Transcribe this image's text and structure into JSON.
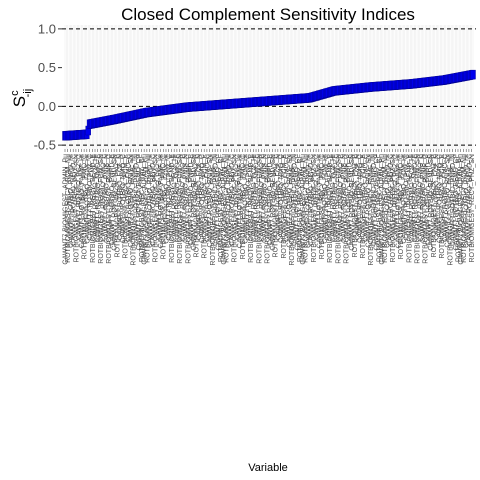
{
  "chart_data": {
    "type": "scatter",
    "title": "Closed Complement Sensitivity Indices",
    "ylabel_main": "S",
    "ylabel_sup": "c",
    "ylabel_sub": "-ij",
    "xlabel": "Variable",
    "ylim": [
      -0.55,
      1.05
    ],
    "yticks": [
      "-0.5",
      "0.0",
      "0.5",
      "1.0"
    ],
    "ytick_values": [
      -0.5,
      0.0,
      0.5,
      1.0
    ],
    "reference_lines": [
      -0.5,
      0.0,
      1.0
    ],
    "n_points": 300,
    "curve": [
      {
        "p": 0.0,
        "y": -0.38
      },
      {
        "p": 0.055,
        "y": -0.36
      },
      {
        "p": 0.06,
        "y": -0.23
      },
      {
        "p": 0.12,
        "y": -0.17
      },
      {
        "p": 0.2,
        "y": -0.08
      },
      {
        "p": 0.3,
        "y": -0.01
      },
      {
        "p": 0.45,
        "y": 0.05
      },
      {
        "p": 0.6,
        "y": 0.11
      },
      {
        "p": 0.66,
        "y": 0.2
      },
      {
        "p": 0.75,
        "y": 0.25
      },
      {
        "p": 0.85,
        "y": 0.29
      },
      {
        "p": 0.93,
        "y": 0.34
      },
      {
        "p": 1.0,
        "y": 0.41
      }
    ],
    "category_labels": [
      "CAWWT7.BIOMIGEST_ADMIN_Pu",
      "CAWWT7.BIOMIGEST_RECY_C",
      "ROTBIOMIGEST_RECY_FCM_Nu",
      "CAWWT7.ROTBIO_NMO_N",
      "CAWWT7.ROTBIO_PNPD_HI",
      "ROTBIOMIGEST_RECY_PNZ_C",
      "CAWWT7.ROTBIO_BEND_C",
      "CAWWT7.ROTBIO_FMO_HI",
      "ROTBIOMIGEST_RECY_PNZ_SN",
      "CAWWT7.ROTBIO_PNIS_HI",
      "CAWWT7.ROTBIO_FCZ_C",
      "ROTBIOMIGEST_RECY_FCZ_N",
      "CAWWT7.ROTBIO_PNMF_HI",
      "CAWWT7.ROTBIO_PNZ_SN",
      "ROTBIOMIGEST_RECY_FMO_C",
      "CAWWT7.ROTBIO_BEND_HI",
      "CAWWT7.ROTBIO_FCM_HI",
      "ROTBIOMIGEST_RECY_PNPD_N",
      "CAWWT7.ROTBIO_PNZ_C",
      "CAWWT7.ROTBIO_FMO_SN",
      "ROTBIOMIGEST_RECY_BEND_E",
      "CAWWT7.ROTBIO_PNIS_C",
      "CAWWT7.ROTBIO_FCZ_HI",
      "ROTBIOMIGEST_RECY_PNMF_N",
      "CAWWT7.ROTBIO_NMO_E",
      "CAWWT7.ROTBIO_PNPD_C",
      "ROTBIOMIGEST_RECY_FCM_SN",
      "CAWWT7.ROTBIO_BEND_N",
      "CAWWT7.ROTBIO_FMO_E",
      "ROTBIOMIGEST_RECY_PNZ_HI",
      "CAWWT7.ROTBIO_PNIS_N",
      "CAWWT7.ROTBIO_FCZ_E",
      "ROTBIOMIGEST_RECY_PNMF_C",
      "CAWWT7.ROTBIO_NMO_HI",
      "CAWWT7.ROTBIO_PNPD_E",
      "ROTBIOMIGEST_RECY_FCM_C",
      "CAWWT7.ROTBIO_BEND_SN",
      "CAWWT7.ROTBIO_FMO_N",
      "ROTBIOMIGEST_RECY_PNZ_E",
      "CAWWT7.ROTBIO_PNIS_E",
      "CAWWT7.ROTBIO_FCZ_N",
      "ROTBIOMIGEST_RECY_PNMF_E",
      "CAWWT7.ROTBIO_NMO_C",
      "CAWWT7.ROTBIO_PNPD_SN",
      "ROTBIOMIGEST_RECY_FCM_E",
      "CAWWT7.ROTBIO_BEND_E",
      "CAWWT7.ROTBIO_FMO_C",
      "ROTBIOMIGEST_RECY_PNZ_N",
      "CAWWT7.ROTBIO_PNIS_SN",
      "CAWWT7.ROTBIO_FCZ_SN",
      "ROTBIOMIGEST_RECY_PNMF_HI",
      "CAWWT7.ROTBIO_NMO_SN",
      "CAWWT7.ROTBIO_PNPD_N",
      "ROTBIOMIGEST_RECY_FCM_HI",
      "CAWWT7.ROTBIO_BEND_CF",
      "CAWWT7.ROTBIO_FMO_CF",
      "ROTBIOMIGEST_RECY_PNZ_CF",
      "CAWWT7.ROTBIO_PNIS_CF"
    ]
  }
}
